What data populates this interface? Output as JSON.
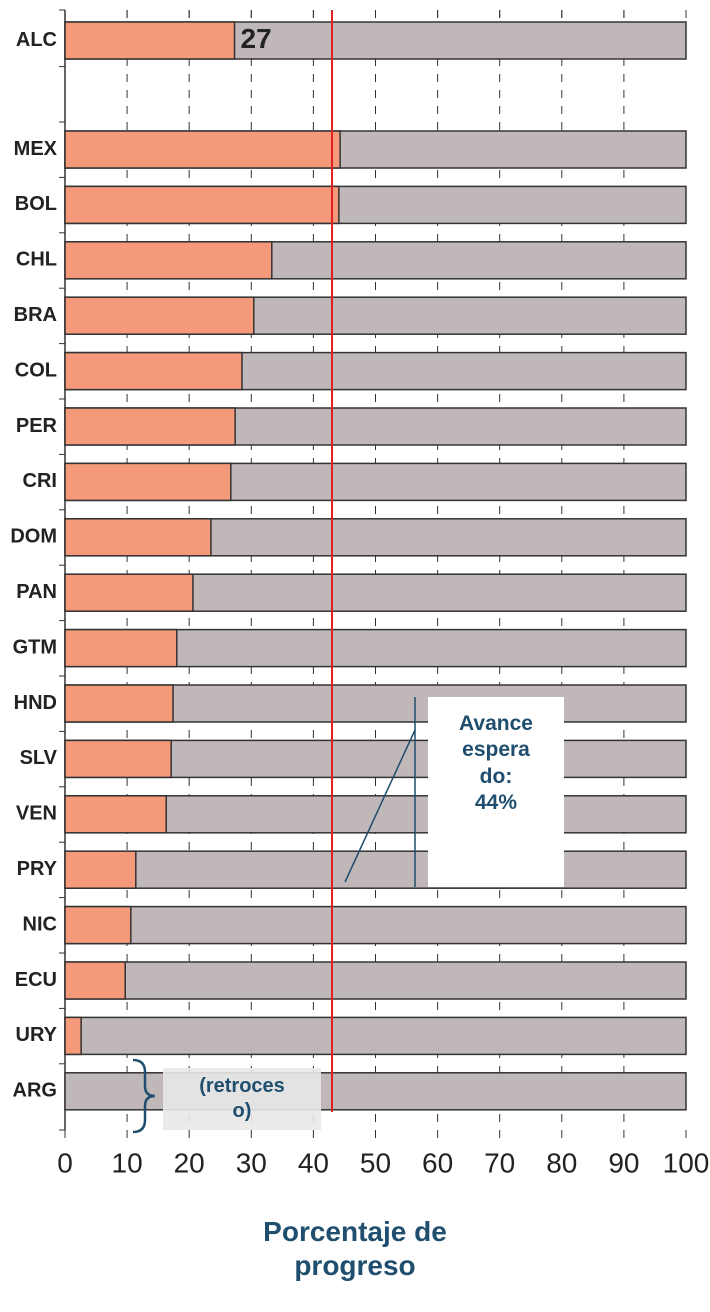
{
  "chart_data": {
    "type": "bar",
    "orientation": "horizontal",
    "categories": [
      "ALC",
      null,
      "MEX",
      "BOL",
      "CHL",
      "BRA",
      "COL",
      "PER",
      "CRI",
      "DOM",
      "PAN",
      "GTM",
      "HND",
      "SLV",
      "VEN",
      "PRY",
      "NIC",
      "ECU",
      "URY",
      "ARG"
    ],
    "values": [
      27.3,
      null,
      44.3,
      44.1,
      33.3,
      30.4,
      28.5,
      27.4,
      26.7,
      23.5,
      20.6,
      18.0,
      17.4,
      17.1,
      16.3,
      11.4,
      10.6,
      9.7,
      2.6,
      0
    ],
    "value_labels": [
      "27",
      null,
      null,
      null,
      null,
      null,
      null,
      null,
      null,
      null,
      null,
      null,
      null,
      null,
      null,
      null,
      null,
      null,
      null,
      null
    ],
    "color": "#f4997a",
    "background_color": "#c0b8b8",
    "xlim": [
      0,
      100
    ],
    "xticks": [
      0,
      10,
      20,
      30,
      40,
      50,
      60,
      70,
      80,
      90,
      100
    ],
    "grid": true,
    "xlabel": "Porcentaje de progreso",
    "reference_line": {
      "value": 43,
      "color": "#e02020"
    },
    "annotations": [
      [
        "Avance",
        "espera",
        "do:",
        "44%"
      ],
      [
        "(retroces",
        "o)"
      ]
    ]
  }
}
